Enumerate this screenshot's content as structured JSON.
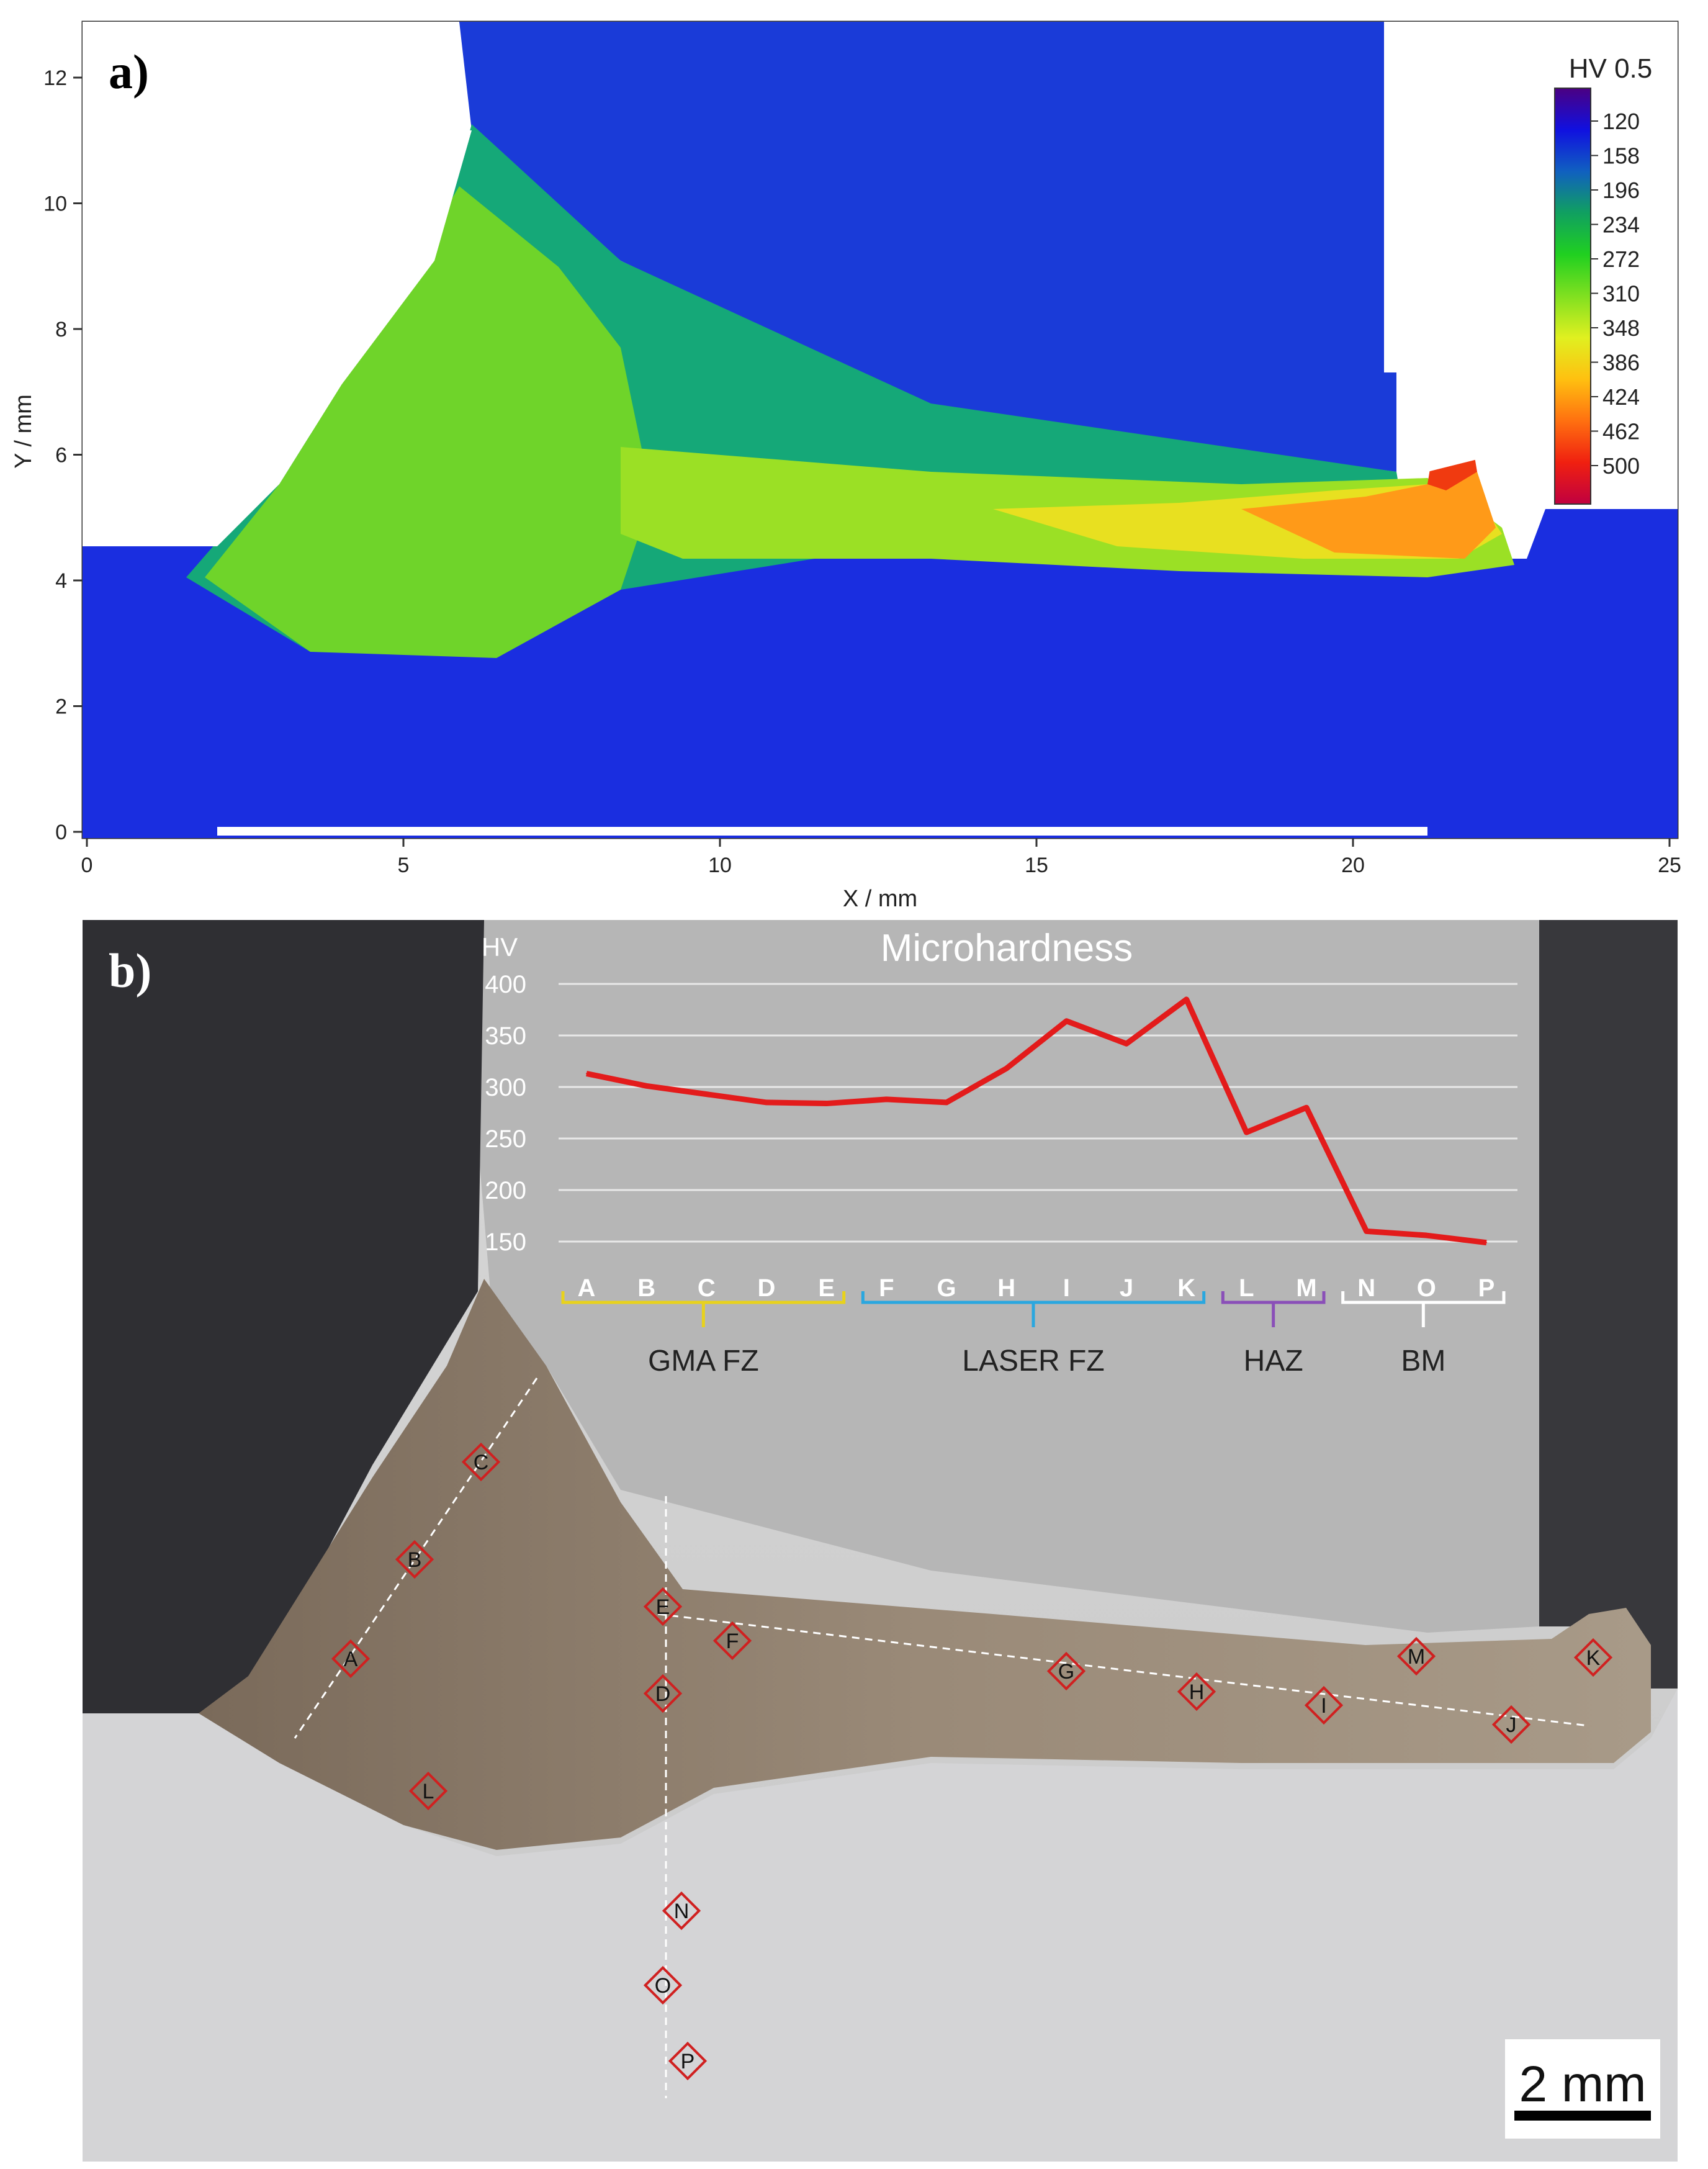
{
  "panel_a": {
    "label": "a)",
    "xlabel": "X / mm",
    "ylabel": "Y / mm",
    "x_ticks": [
      "0",
      "5",
      "10",
      "15",
      "20",
      "25"
    ],
    "y_ticks": [
      "0",
      "2",
      "4",
      "6",
      "8",
      "10",
      "12"
    ],
    "colorbar_title": "HV 0.5",
    "colorbar_ticks": [
      "120",
      "158",
      "196",
      "234",
      "272",
      "310",
      "348",
      "386",
      "424",
      "462",
      "500"
    ]
  },
  "panel_b": {
    "label": "b)",
    "scale_bar": "2 mm",
    "point_markers": [
      "A",
      "B",
      "C",
      "D",
      "E",
      "F",
      "G",
      "H",
      "I",
      "J",
      "K",
      "L",
      "M",
      "N",
      "O",
      "P"
    ]
  },
  "colors": {
    "line": "#e31b1b",
    "gma_brace": "#e8d21c",
    "laser_brace": "#2aa7df",
    "haz_brace": "#8a4fb8",
    "bm_brace": "#ffffff",
    "marker": "#d02020"
  },
  "chart_data": [
    {
      "type": "heatmap",
      "title": "",
      "xlabel": "X / mm",
      "ylabel": "Y / mm",
      "xlim": [
        0,
        25
      ],
      "ylim": [
        0,
        12.5
      ],
      "colorbar": {
        "title": "HV 0.5",
        "range": [
          120,
          500
        ],
        "ticks": [
          120,
          158,
          196,
          234,
          272,
          310,
          348,
          386,
          424,
          462,
          500
        ]
      }
    },
    {
      "type": "line",
      "title": "Microhardness",
      "ylabel": "HV",
      "ylim": [
        150,
        400
      ],
      "yticks": [
        "400",
        "350",
        "300",
        "250",
        "200",
        "150"
      ],
      "categories": [
        "A",
        "B",
        "C",
        "D",
        "E",
        "F",
        "G",
        "H",
        "I",
        "J",
        "K",
        "L",
        "M",
        "N",
        "O",
        "P"
      ],
      "series": [
        {
          "values": [
            313,
            301,
            293,
            285,
            284,
            288,
            285,
            318,
            364,
            342,
            385,
            256,
            280,
            160,
            156,
            149
          ]
        }
      ],
      "groups": [
        {
          "label": "GMA FZ",
          "from": "A",
          "to": "E"
        },
        {
          "label": "LASER FZ",
          "from": "F",
          "to": "K"
        },
        {
          "label": "HAZ",
          "from": "L",
          "to": "M"
        },
        {
          "label": "BM",
          "from": "N",
          "to": "P"
        }
      ]
    }
  ]
}
